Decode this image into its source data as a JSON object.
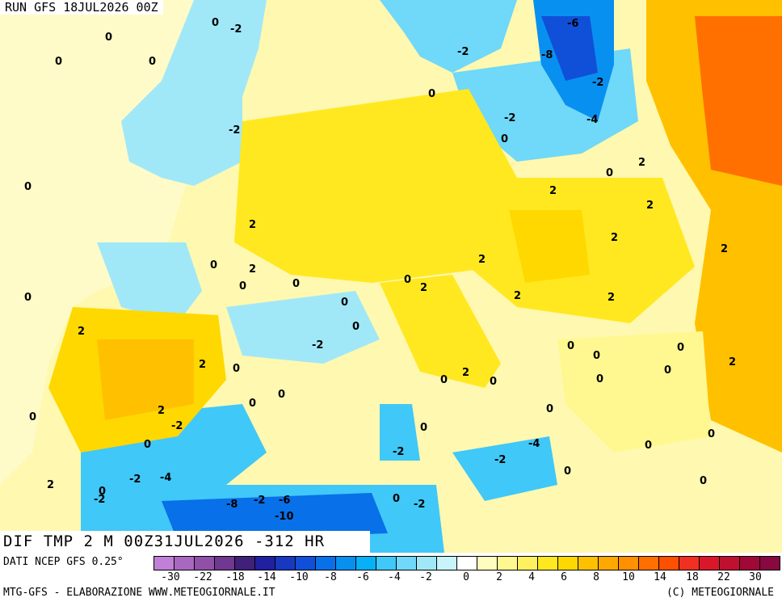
{
  "header": {
    "run_title": "RUN GFS 18JUL2026 00Z"
  },
  "map_title": "DIF TMP 2 M 00Z31JUL2026 -312 HR",
  "footer": {
    "data_source": "DATI NCEP GFS 0.25°",
    "credit_left": "MTG-GFS - ELABORAZIONE WWW.METEOGIORNALE.IT",
    "credit_right": "(C) METEOGIORNALE"
  },
  "legend": {
    "colors": [
      "#c080d8",
      "#a868c0",
      "#9050a8",
      "#703890",
      "#402078",
      "#2020a0",
      "#1838c0",
      "#1050d8",
      "#0870e8",
      "#0890f0",
      "#08b0f8",
      "#40c8f8",
      "#70d8f8",
      "#a0e8f8",
      "#c8f4fc",
      "#ffffff",
      "#fffcc0",
      "#fff890",
      "#fff060",
      "#ffe820",
      "#ffd800",
      "#ffc000",
      "#ffa800",
      "#ff9000",
      "#ff7000",
      "#ff5000",
      "#f03020",
      "#d81828",
      "#c01030",
      "#a00838",
      "#880840"
    ],
    "tick_labels": [
      "-30",
      "-22",
      "-18",
      "-14",
      "-10",
      "-8",
      "-6",
      "-4",
      "-2",
      "0",
      "2",
      "4",
      "6",
      "8",
      "10",
      "14",
      "18",
      "22",
      "30"
    ]
  },
  "map_labels": [
    "0",
    "-2",
    "-4",
    "-6",
    "-8",
    "-10",
    "2"
  ]
}
